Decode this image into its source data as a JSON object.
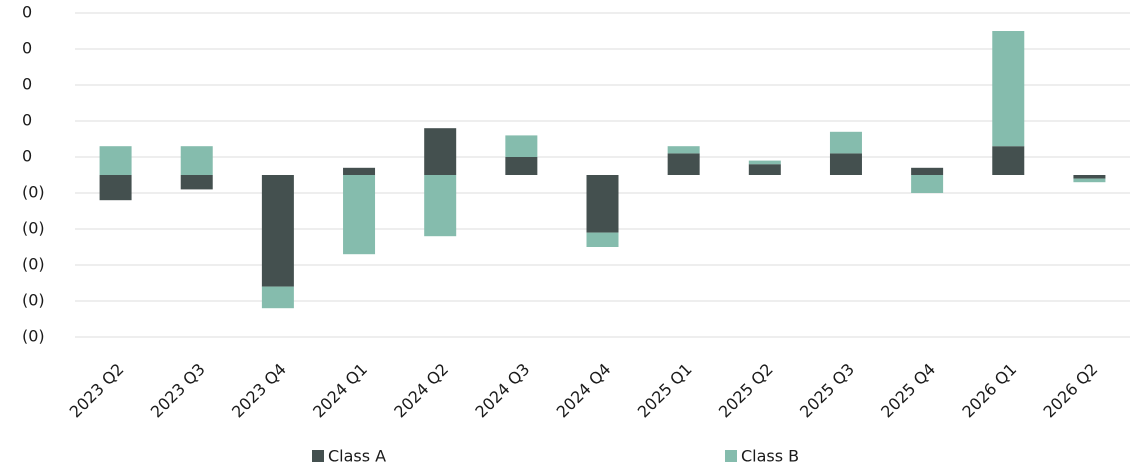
{
  "chart_data": {
    "type": "stacked_bar",
    "categories": [
      "2023 Q2",
      "2023 Q3",
      "2023 Q4",
      "2024 Q1",
      "2024 Q2",
      "2024 Q3",
      "2024 Q4",
      "2025 Q1",
      "2025 Q2",
      "2025 Q3",
      "2025 Q4",
      "2026 Q1",
      "2026 Q2"
    ],
    "series": [
      {
        "name": "Class A",
        "color": "#44504f",
        "values": [
          -0.07,
          -0.04,
          -0.31,
          0.02,
          0.13,
          0.05,
          -0.16,
          0.06,
          0.03,
          0.06,
          0.02,
          0.08,
          -0.01
        ]
      },
      {
        "name": "Class B",
        "color": "#85bcad",
        "values": [
          0.08,
          0.08,
          -0.06,
          -0.22,
          -0.17,
          0.06,
          -0.04,
          0.02,
          0.01,
          0.06,
          -0.05,
          0.32,
          -0.01
        ]
      }
    ],
    "ylim": [
      -0.45,
      0.45
    ],
    "yticks": [
      {
        "value": 0.45,
        "label": "0"
      },
      {
        "value": 0.35,
        "label": "0"
      },
      {
        "value": 0.25,
        "label": "0"
      },
      {
        "value": 0.15,
        "label": "0"
      },
      {
        "value": 0.05,
        "label": "0"
      },
      {
        "value": -0.05,
        "label": "(0)"
      },
      {
        "value": -0.15,
        "label": "(0)"
      },
      {
        "value": -0.25,
        "label": "(0)"
      },
      {
        "value": -0.35,
        "label": "(0)"
      },
      {
        "value": -0.45,
        "label": "(0)"
      }
    ],
    "grid": true,
    "legend": "bottom"
  }
}
